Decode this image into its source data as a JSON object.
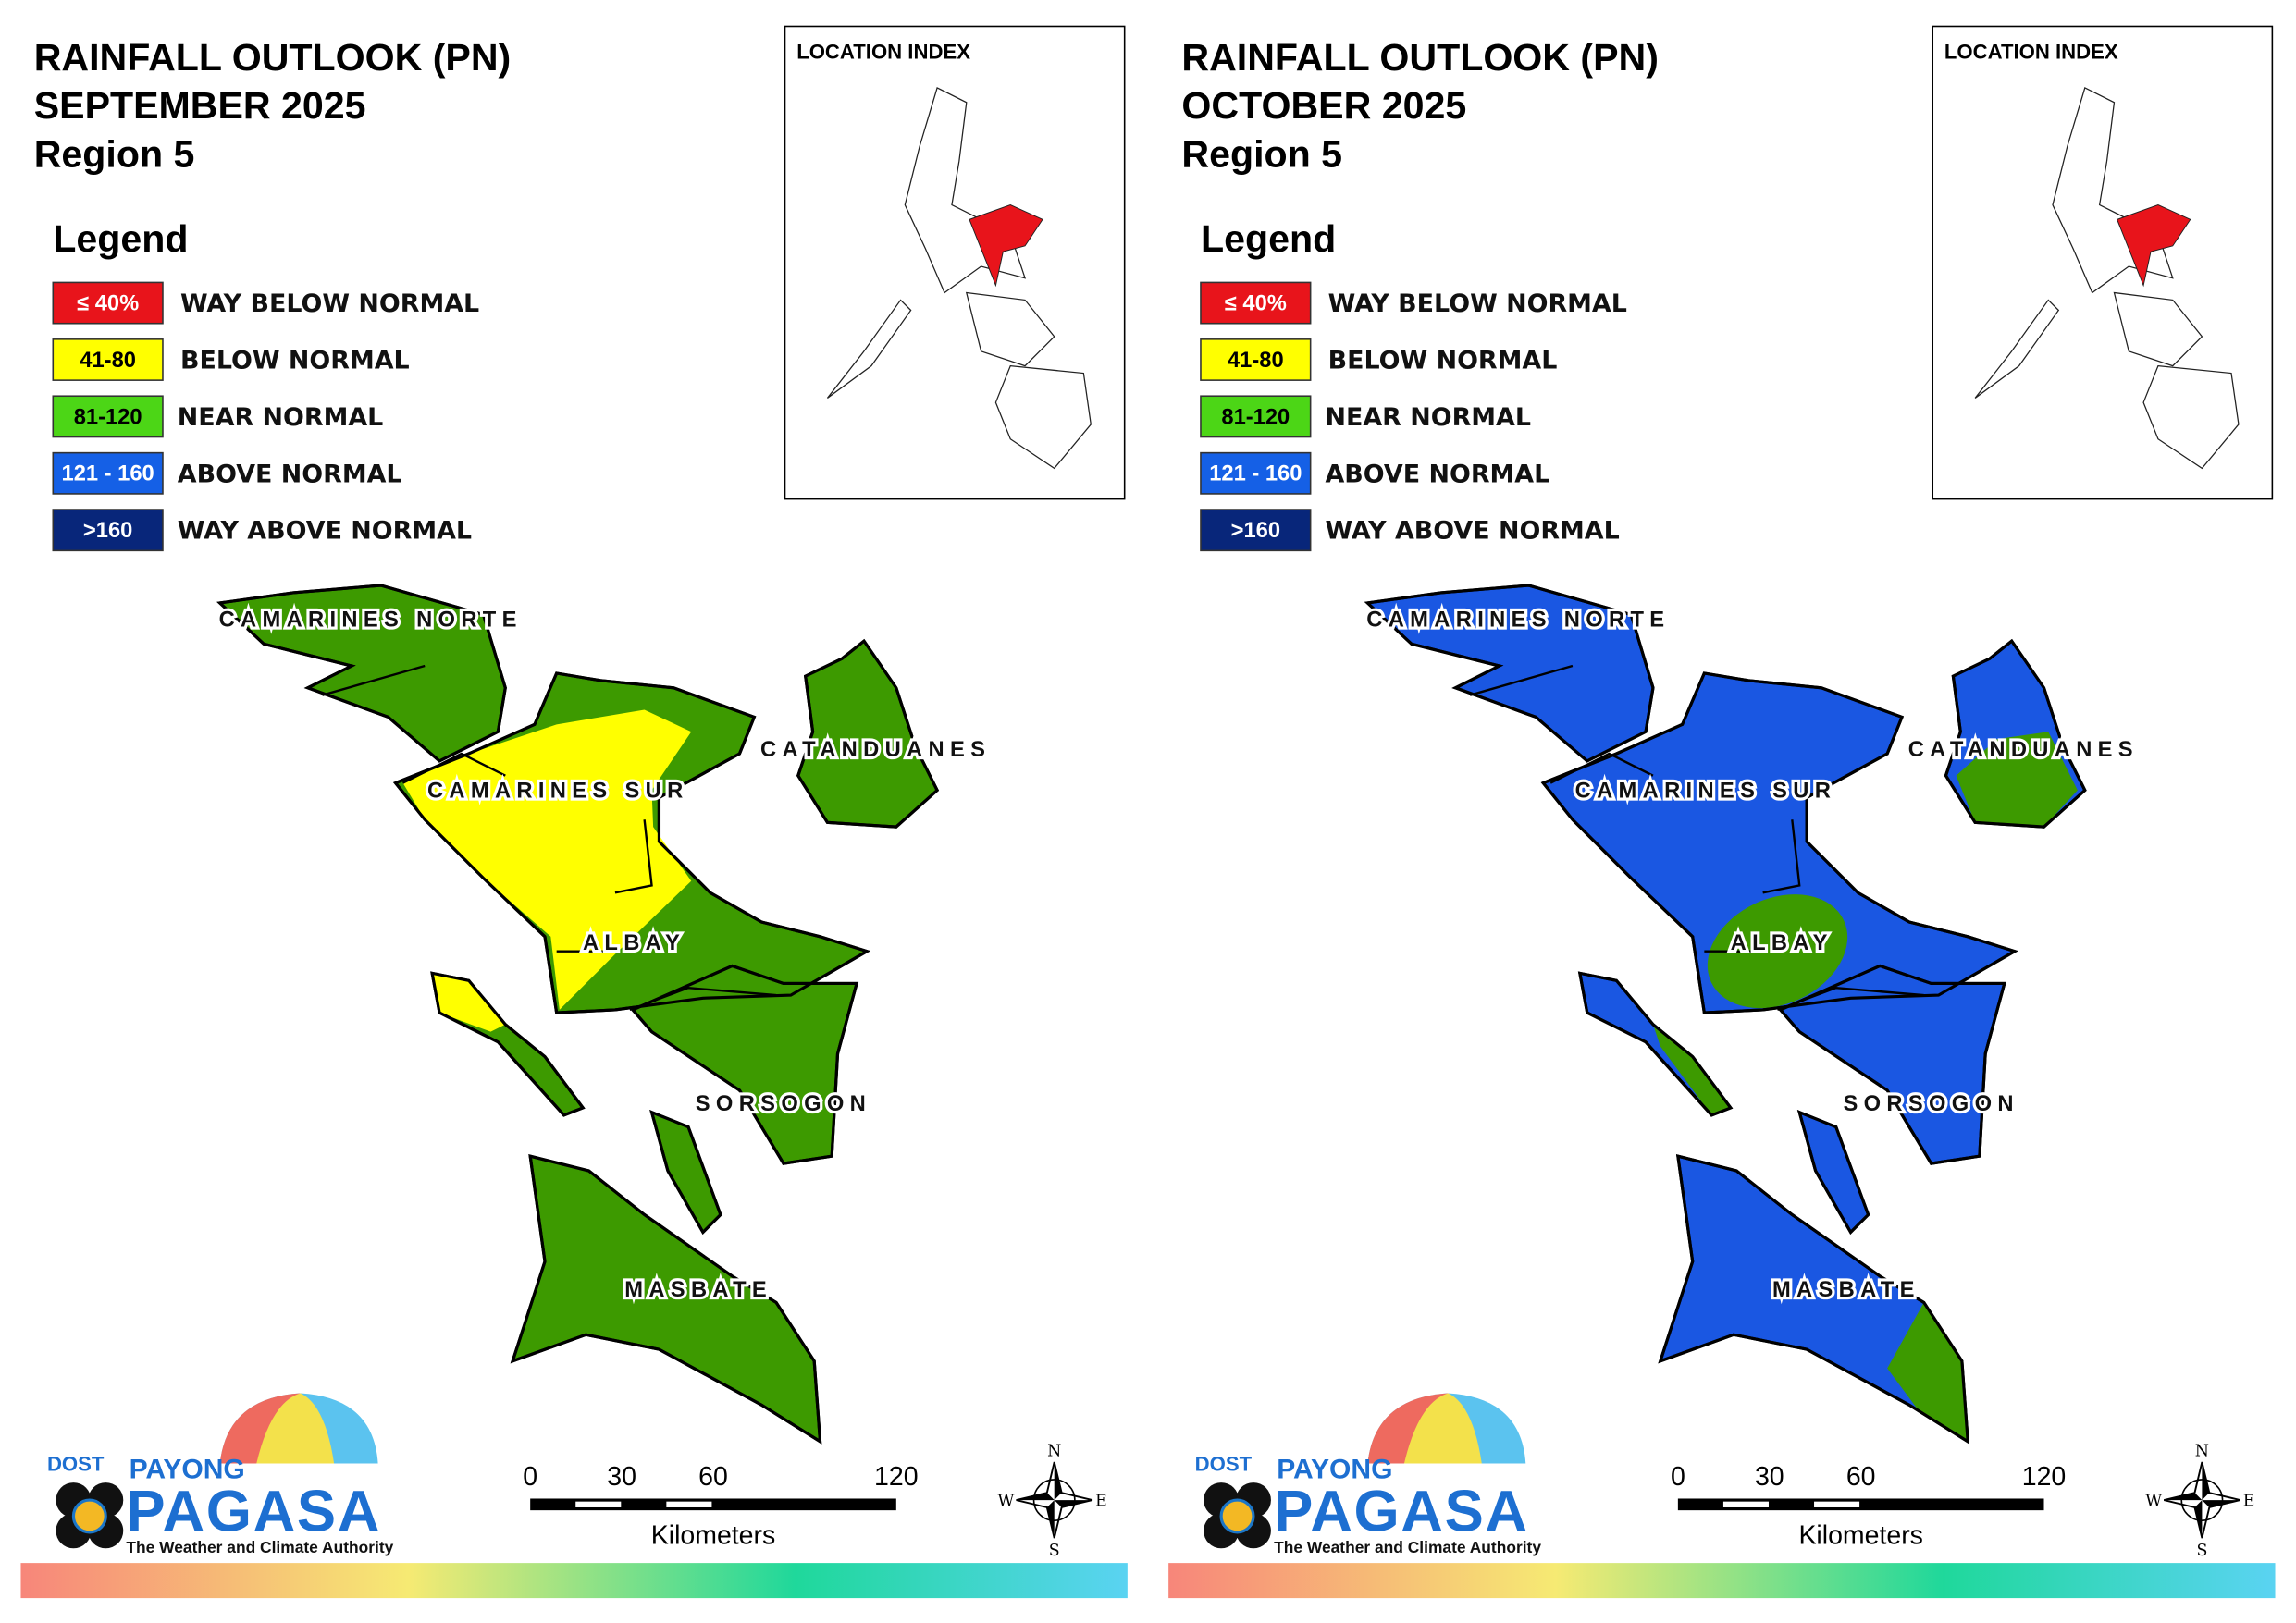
{
  "panels": [
    {
      "title": [
        "RAINFALL OUTLOOK (PN)",
        "SEPTEMBER 2025",
        "Region 5"
      ],
      "legend": {
        "title": "Legend",
        "items": [
          {
            "range": "≤ 40%",
            "label": "WAY BELOW NORMAL",
            "color": "#e8141b"
          },
          {
            "range": "41-80",
            "label": "BELOW NORMAL",
            "color": "#ffff00"
          },
          {
            "range": "81-120",
            "label": "NEAR NORMAL",
            "color": "#4cd616"
          },
          {
            "range": "121 - 160",
            "label": "ABOVE NORMAL",
            "color": "#1560e6"
          },
          {
            "range": ">160",
            "label": "WAY ABOVE NORMAL",
            "color": "#08267a"
          }
        ]
      },
      "location_index": "LOCATION INDEX",
      "provinces": [
        "CAMARINES NORTE",
        "CAMARINES SUR",
        "CATANDUANES",
        "ALBAY",
        "SORSOGON",
        "MASBATE"
      ],
      "scale": {
        "ticks": [
          0,
          30,
          60,
          120
        ],
        "unit": "Kilometers"
      },
      "compass": [
        "N",
        "E",
        "S",
        "W"
      ],
      "logo": {
        "agency": "DOST",
        "name_top": "PAYONG",
        "name": "PAGASA",
        "tagline": "The Weather and Climate Authority"
      }
    },
    {
      "title": [
        "RAINFALL OUTLOOK (PN)",
        "OCTOBER 2025",
        "Region 5"
      ],
      "legend": {
        "title": "Legend",
        "items": [
          {
            "range": "≤ 40%",
            "label": "WAY BELOW NORMAL",
            "color": "#e8141b"
          },
          {
            "range": "41-80",
            "label": "BELOW NORMAL",
            "color": "#ffff00"
          },
          {
            "range": "81-120",
            "label": "NEAR NORMAL",
            "color": "#4cd616"
          },
          {
            "range": "121 - 160",
            "label": "ABOVE NORMAL",
            "color": "#1560e6"
          },
          {
            "range": ">160",
            "label": "WAY ABOVE NORMAL",
            "color": "#08267a"
          }
        ]
      },
      "location_index": "LOCATION INDEX",
      "provinces": [
        "CAMARINES NORTE",
        "CAMARINES SUR",
        "CATANDUANES",
        "ALBAY",
        "SORSOGON",
        "MASBATE"
      ],
      "scale": {
        "ticks": [
          0,
          30,
          60,
          120
        ],
        "unit": "Kilometers"
      },
      "compass": [
        "N",
        "E",
        "S",
        "W"
      ],
      "logo": {
        "agency": "DOST",
        "name_top": "PAYONG",
        "name": "PAGASA",
        "tagline": "The Weather and Climate Authority"
      }
    }
  ]
}
